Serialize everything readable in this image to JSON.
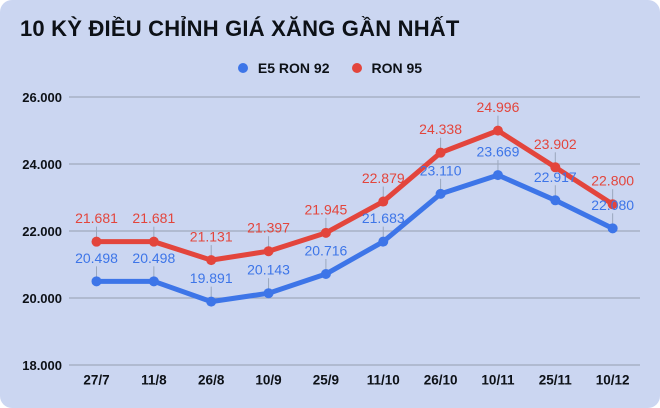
{
  "title": "10 KỲ ĐIỀU CHỈNH GIÁ XĂNG GẦN NHẤT",
  "colors": {
    "background": "#CBD6F1",
    "text": "#0D1117",
    "grid": "#A0A9BC",
    "leader": "#9AA7BD",
    "blue": "#3D75E8",
    "red": "#E3453C"
  },
  "chart_data": {
    "type": "line",
    "title": "10 KỲ ĐIỀU CHỈNH GIÁ XĂNG GẦN NHẤT",
    "categories": [
      "27/7",
      "11/8",
      "26/8",
      "10/9",
      "25/9",
      "11/10",
      "26/10",
      "10/11",
      "25/11",
      "10/12"
    ],
    "series": [
      {
        "name": "E5 RON 92",
        "color": "#3D75E8",
        "values": [
          20498,
          20498,
          19891,
          20143,
          20716,
          21683,
          23110,
          23669,
          22917,
          22080
        ],
        "labels": [
          "20.498",
          "20.498",
          "19.891",
          "20.143",
          "20.716",
          "21.683",
          "23.110",
          "23.669",
          "22.917",
          "22.080"
        ]
      },
      {
        "name": "RON 95",
        "color": "#E3453C",
        "values": [
          21681,
          21681,
          21131,
          21397,
          21945,
          22879,
          24338,
          24996,
          23902,
          22800
        ],
        "labels": [
          "21.681",
          "21.681",
          "21.131",
          "21.397",
          "21.945",
          "22.879",
          "24.338",
          "24.996",
          "23.902",
          "22.800"
        ]
      }
    ],
    "y_ticks": [
      {
        "value": 18000,
        "label": "18.000"
      },
      {
        "value": 20000,
        "label": "20.000"
      },
      {
        "value": 22000,
        "label": "22.000"
      },
      {
        "value": 24000,
        "label": "24.000"
      },
      {
        "value": 26000,
        "label": "26.000"
      }
    ],
    "ylim": [
      18000,
      26000
    ],
    "xlabel": "",
    "ylabel": "",
    "legend_position": "top-center",
    "grid": "horizontal",
    "value_labels": "above-points"
  }
}
